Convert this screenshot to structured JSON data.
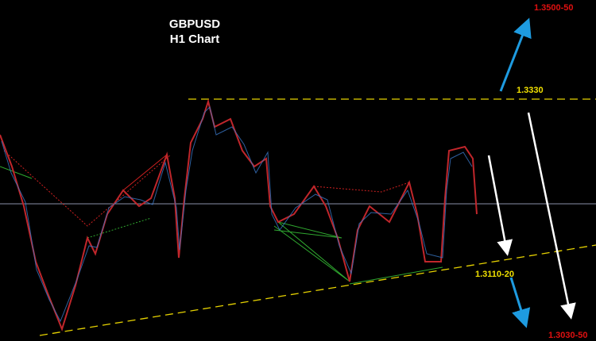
{
  "header": {
    "symbol": "GBPUSD",
    "timeframe": "H1 Chart"
  },
  "levels": [
    {
      "label": "1.3500-50"
    },
    {
      "label": "1.3330"
    },
    {
      "label": "1.3110-20"
    },
    {
      "label": "1.3030-50"
    }
  ]
}
